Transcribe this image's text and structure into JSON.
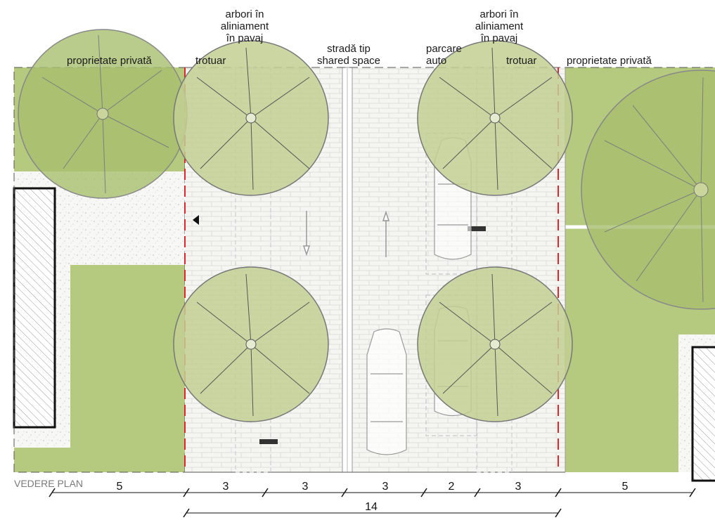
{
  "labels": {
    "private_left": "proprietate privată",
    "private_right": "proprietate privată",
    "sidewalk_left": "trotuar",
    "sidewalk_right": "trotuar",
    "trees_left_l1": "arbori în",
    "trees_left_l2": "aliniament",
    "trees_left_l3": "în pavaj",
    "trees_right_l1": "arbori în",
    "trees_right_l2": "aliniament",
    "trees_right_l3": "în pavaj",
    "street_l1": "stradă tip",
    "street_l2": "shared space",
    "parking_l1": "parcare",
    "parking_l2": "auto",
    "view": "VEDERE PLAN"
  },
  "dimensions": {
    "segments": [
      "5",
      "3",
      "3",
      "3",
      "2",
      "3",
      "5"
    ],
    "total": "14"
  },
  "colors": {
    "grass": "#b5c97f",
    "tree_canopy": "#bccb8c",
    "pavement": "#f4f4f1",
    "boundary_red": "#e0262b",
    "building_hatch": "#9a9a9a"
  }
}
